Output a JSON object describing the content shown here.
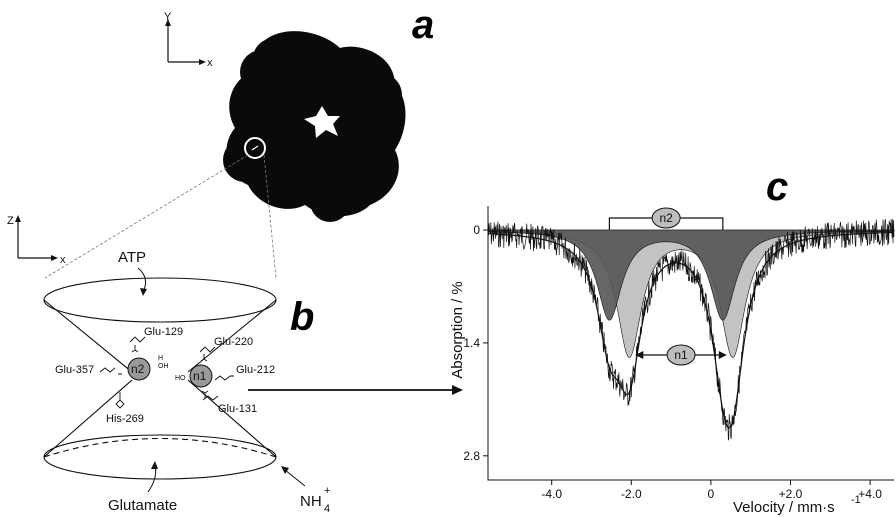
{
  "panels": {
    "a": "a",
    "b": "b",
    "c": "c"
  },
  "axes_a": {
    "y": "Y",
    "x": "x"
  },
  "axes_b": {
    "z": "Z",
    "x": "x"
  },
  "cone": {
    "top_label": "ATP",
    "bottom_label": "Glutamate",
    "ammonium": "NH",
    "ammonium_sub": "4",
    "ammonium_sup": "+"
  },
  "residues": {
    "glu129": "Glu-129",
    "glu220": "Glu-220",
    "glu357": "Glu-357",
    "glu212": "Glu-212",
    "his269": "His-269",
    "glu131": "Glu-131"
  },
  "sites": {
    "n1": "n1",
    "n2": "n2"
  },
  "water_labels": {
    "oh": "OH",
    "h": "H",
    "ho": "HO"
  },
  "chart_data": {
    "type": "line",
    "title": "",
    "xlabel": "Velocity / mm·s",
    "xlabel_sup": "-1",
    "ylabel": "Absorption / %",
    "xlim": [
      -5.6,
      4.6
    ],
    "ylim": [
      0,
      3.1
    ],
    "y_inverted": true,
    "x_ticks": [
      "-4.0",
      "-2.0",
      "0",
      "+2.0",
      "+4.0"
    ],
    "x_tick_values": [
      -4.0,
      -2.0,
      0,
      2.0,
      4.0
    ],
    "y_ticks": [
      "0",
      "1.4",
      "2.8"
    ],
    "y_tick_values": [
      0,
      1.4,
      2.8
    ],
    "doublets": [
      {
        "name": "n1",
        "lines": [
          -2.05,
          0.55
        ],
        "depth": 1.55,
        "fill": "#bdbdbd"
      },
      {
        "name": "n2",
        "lines": [
          -2.55,
          0.3
        ],
        "depth": 1.1,
        "fill": "#555555"
      }
    ],
    "annotations": [
      "n1",
      "n2"
    ],
    "colors": {
      "data": "#111111",
      "n1_fill": "#bdbdbd",
      "n2_fill": "#555555"
    }
  }
}
